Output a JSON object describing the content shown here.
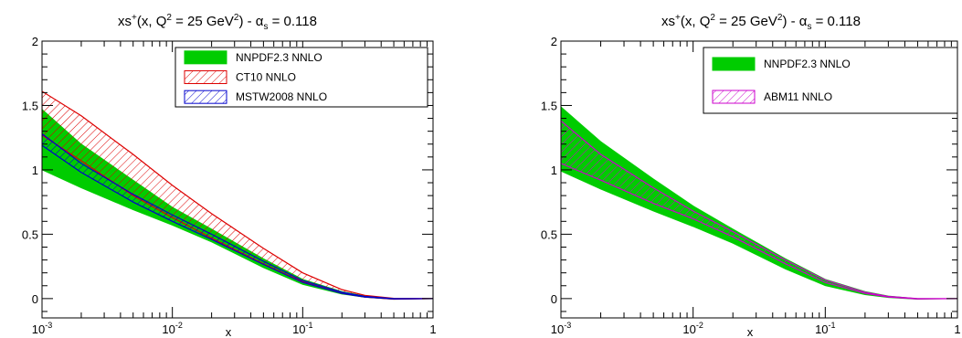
{
  "chart_data": [
    {
      "type": "area",
      "title": {
        "prefix": "xs",
        "sup1": "+",
        "mid": "(x, Q",
        "sup2": "2",
        "mid2": " = 25 GeV",
        "sup3": "2",
        "mid3": ") - α",
        "sub": "s",
        "tail": " = 0.118"
      },
      "xlabel": "x",
      "ylabel": "",
      "xscale": "log",
      "xlim": [
        0.001,
        1
      ],
      "ylim": [
        -0.15,
        2
      ],
      "x_ticks": [
        {
          "base": "10",
          "exp": "-3"
        },
        {
          "base": "10",
          "exp": "-2"
        },
        {
          "base": "10",
          "exp": "-1"
        },
        {
          "base": "1",
          "exp": ""
        }
      ],
      "y_ticks": [
        "0",
        "0.5",
        "1",
        "1.5",
        "2"
      ],
      "x": [
        0.001,
        0.002,
        0.005,
        0.01,
        0.02,
        0.05,
        0.1,
        0.2,
        0.3,
        0.5,
        1.0
      ],
      "series": [
        {
          "name": "NNPDF2.3 NNLO",
          "color": "#00cc00",
          "style": "solid",
          "lower": [
            1.0,
            0.86,
            0.69,
            0.57,
            0.44,
            0.24,
            0.11,
            0.035,
            0.01,
            -0.005,
            0.0
          ],
          "upper": [
            1.47,
            1.2,
            0.92,
            0.71,
            0.54,
            0.31,
            0.15,
            0.055,
            0.02,
            0.0,
            0.0
          ]
        },
        {
          "name": "CT10 NNLO",
          "color": "#dd0000",
          "style": "hatch",
          "lower": [
            1.27,
            1.07,
            0.8,
            0.63,
            0.47,
            0.27,
            0.13,
            0.04,
            0.012,
            -0.005,
            0.0
          ],
          "upper": [
            1.61,
            1.42,
            1.12,
            0.88,
            0.66,
            0.39,
            0.2,
            0.07,
            0.025,
            0.002,
            0.0
          ]
        },
        {
          "name": "MSTW2008 NNLO",
          "color": "#0000cc",
          "style": "hatch",
          "lower": [
            1.19,
            0.98,
            0.75,
            0.6,
            0.46,
            0.265,
            0.125,
            0.04,
            0.012,
            -0.003,
            0.0
          ],
          "upper": [
            1.28,
            1.05,
            0.81,
            0.65,
            0.5,
            0.29,
            0.14,
            0.05,
            0.017,
            0.0,
            0.0
          ]
        }
      ],
      "legend_position": "top-right"
    },
    {
      "type": "area",
      "title": {
        "prefix": "xs",
        "sup1": "+",
        "mid": "(x, Q",
        "sup2": "2",
        "mid2": " = 25 GeV",
        "sup3": "2",
        "mid3": ") - α",
        "sub": "s",
        "tail": " = 0.118"
      },
      "xlabel": "x",
      "ylabel": "",
      "xscale": "log",
      "xlim": [
        0.001,
        1
      ],
      "ylim": [
        -0.15,
        2
      ],
      "x_ticks": [
        {
          "base": "10",
          "exp": "-3"
        },
        {
          "base": "10",
          "exp": "-2"
        },
        {
          "base": "10",
          "exp": "-1"
        },
        {
          "base": "1",
          "exp": ""
        }
      ],
      "y_ticks": [
        "0",
        "0.5",
        "1",
        "1.5",
        "2"
      ],
      "x": [
        0.001,
        0.002,
        0.005,
        0.01,
        0.02,
        0.05,
        0.1,
        0.2,
        0.3,
        0.5,
        1.0
      ],
      "series": [
        {
          "name": "NNPDF2.3 NNLO",
          "color": "#00cc00",
          "style": "solid",
          "lower": [
            0.99,
            0.85,
            0.68,
            0.56,
            0.43,
            0.23,
            0.1,
            0.03,
            0.008,
            -0.005,
            0.0
          ],
          "upper": [
            1.49,
            1.22,
            0.93,
            0.72,
            0.54,
            0.31,
            0.15,
            0.055,
            0.02,
            0.0,
            0.0
          ]
        },
        {
          "name": "ABM11 NNLO",
          "color": "#cc00cc",
          "style": "hatch",
          "lower": [
            1.05,
            0.92,
            0.74,
            0.62,
            0.48,
            0.27,
            0.125,
            0.04,
            0.012,
            -0.003,
            0.0
          ],
          "upper": [
            1.38,
            1.12,
            0.86,
            0.68,
            0.52,
            0.3,
            0.145,
            0.05,
            0.017,
            0.0,
            0.0
          ]
        }
      ],
      "legend_position": "top-right"
    }
  ]
}
